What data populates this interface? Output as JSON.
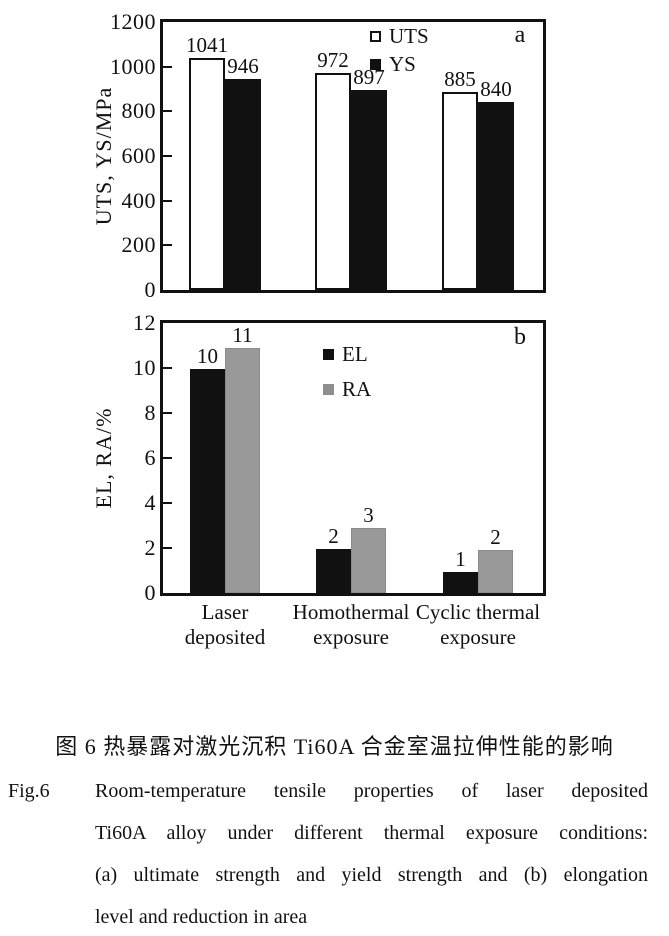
{
  "figure": {
    "categories_two_line": [
      [
        "Laser",
        "deposited"
      ],
      [
        "Homothermal",
        "exposure"
      ],
      [
        "Cyclic thermal",
        "exposure"
      ]
    ]
  },
  "chart_data": [
    {
      "type": "bar",
      "panel_label": "a",
      "ylabel": "UTS, YS/MPa",
      "ylim": [
        0,
        1200
      ],
      "yticks": [
        0,
        200,
        400,
        600,
        800,
        1000,
        1200
      ],
      "grid": false,
      "legend_position": "inside-top-center",
      "categories": [
        "Laser deposited",
        "Homothermal exposure",
        "Cyclic thermal exposure"
      ],
      "series": [
        {
          "name": "UTS",
          "style": "open",
          "values": [
            1041,
            972,
            885
          ],
          "labels": [
            "1041",
            "972",
            "885"
          ]
        },
        {
          "name": "YS",
          "style": "black",
          "values": [
            946,
            897,
            840
          ],
          "labels": [
            "946",
            "897",
            "840"
          ]
        }
      ]
    },
    {
      "type": "bar",
      "panel_label": "b",
      "ylabel": "EL, RA/%",
      "ylim": [
        0,
        12
      ],
      "yticks": [
        0,
        2,
        4,
        6,
        8,
        10,
        12
      ],
      "grid": false,
      "legend_position": "inside-top-center",
      "categories": [
        "Laser deposited",
        "Homothermal exposure",
        "Cyclic thermal exposure"
      ],
      "series": [
        {
          "name": "EL",
          "style": "black",
          "values": [
            10,
            2,
            1
          ],
          "plotted": [
            9.95,
            1.95,
            0.95
          ],
          "labels": [
            "10",
            "2",
            "1"
          ]
        },
        {
          "name": "RA",
          "style": "gray",
          "values": [
            11,
            3,
            2
          ],
          "plotted": [
            10.9,
            2.9,
            1.9
          ],
          "labels": [
            "11",
            "3",
            "2"
          ]
        }
      ]
    }
  ],
  "caption": {
    "chinese": "图 6  热暴露对激光沉积 Ti60A 合金室温拉伸性能的影响",
    "fig_label": "Fig.6",
    "english_lines": [
      "Room-temperature tensile properties of laser deposited",
      "Ti60A alloy under different thermal exposure conditions:",
      "(a) ultimate strength and yield strength and (b) elongation",
      "level and reduction in area"
    ]
  },
  "colors": {
    "ink": "#111111",
    "bar_black": "#111111",
    "bar_gray": "#999999",
    "bar_open_fill": "#ffffff"
  }
}
